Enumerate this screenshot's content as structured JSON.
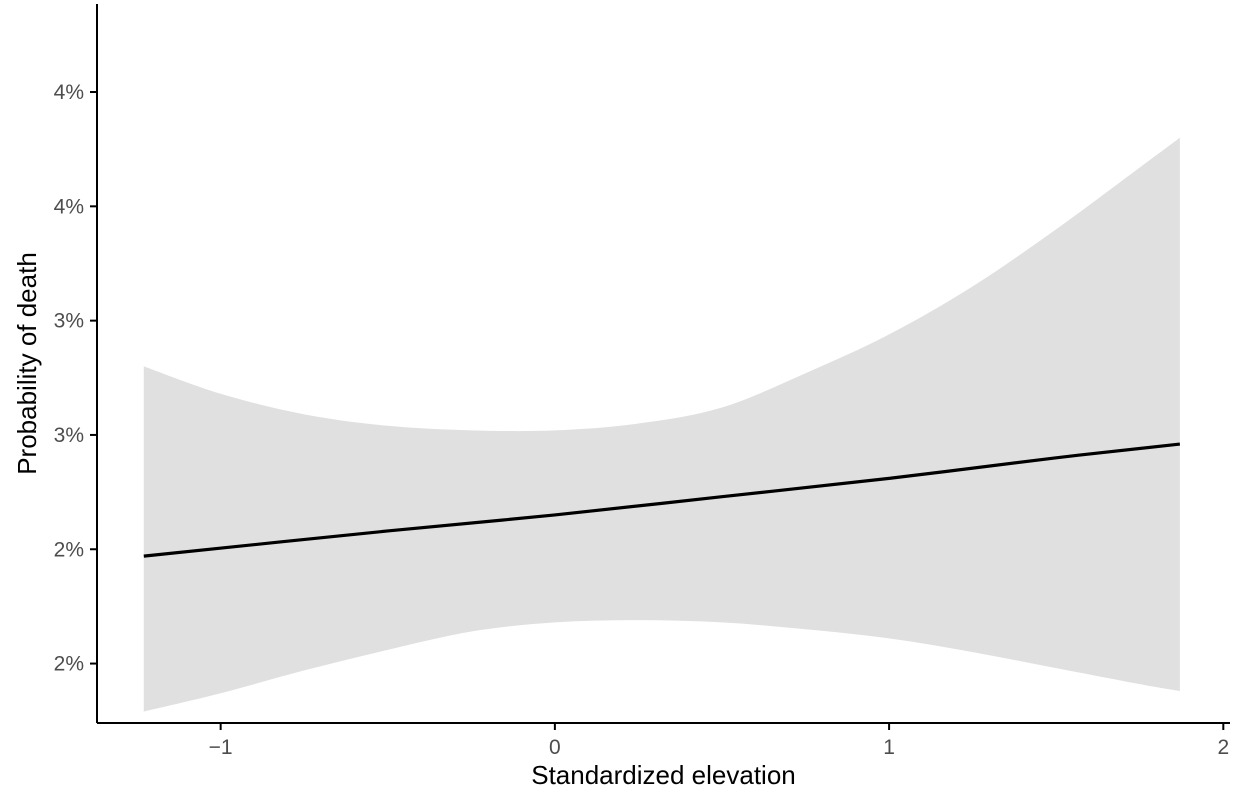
{
  "chart_data": {
    "type": "area",
    "title": "",
    "xlabel": "Standardized elevation",
    "ylabel": "Probability of death",
    "xlim": [
      -1.37,
      2.02
    ],
    "ylim": [
      0.0124,
      0.04385
    ],
    "x_ticks": [
      {
        "value": -1,
        "label": "−1"
      },
      {
        "value": 0,
        "label": "0"
      },
      {
        "value": 1,
        "label": "1"
      },
      {
        "value": 2,
        "label": "2"
      }
    ],
    "y_ticks": [
      {
        "value": 0.015,
        "label": "2%"
      },
      {
        "value": 0.02,
        "label": "2%"
      },
      {
        "value": 0.025,
        "label": "3%"
      },
      {
        "value": 0.03,
        "label": "3%"
      },
      {
        "value": 0.035,
        "label": "4%"
      },
      {
        "value": 0.04,
        "label": "4%"
      }
    ],
    "grid": false,
    "series": [
      {
        "kind": "line",
        "color": "#000000",
        "x": [
          -1.23,
          -0.5,
          0.0,
          0.5,
          1.0,
          1.5,
          1.87
        ],
        "y": [
          0.0197,
          0.0208,
          0.0215,
          0.0223,
          0.0231,
          0.024,
          0.0246
        ]
      },
      {
        "kind": "ribbon",
        "color": "#e0e0e0",
        "x": [
          -1.23,
          -1.0,
          -0.75,
          -0.5,
          -0.25,
          0.0,
          0.25,
          0.5,
          0.75,
          1.0,
          1.25,
          1.5,
          1.75,
          1.87
        ],
        "lower": [
          0.0129,
          0.0137,
          0.0147,
          0.0156,
          0.0164,
          0.0168,
          0.0169,
          0.0168,
          0.0165,
          0.0161,
          0.0155,
          0.0148,
          0.0141,
          0.0138
        ],
        "upper": [
          0.028,
          0.0268,
          0.0259,
          0.0254,
          0.0252,
          0.0252,
          0.0255,
          0.0262,
          0.0277,
          0.0294,
          0.0315,
          0.034,
          0.0367,
          0.038
        ]
      }
    ]
  }
}
